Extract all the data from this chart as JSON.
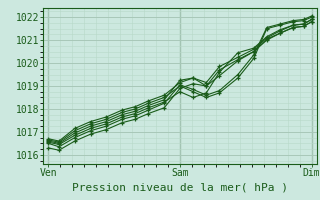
{
  "bg_color": "#cce8df",
  "plot_bg_color": "#cce8df",
  "grid_major_color": "#a8c8b8",
  "grid_minor_color": "#b8d8c8",
  "line_color": "#1a5c1a",
  "text_color": "#1a5c1a",
  "xlabel": "Pression niveau de la mer( hPa )",
  "xlabel_fontsize": 8,
  "ytick_values": [
    1016,
    1017,
    1018,
    1019,
    1020,
    1021,
    1022
  ],
  "xtick_labels": [
    "Ven",
    "Sam",
    "Dim"
  ],
  "xtick_positions": [
    0.0,
    0.5,
    1.0
  ],
  "ylim": [
    1015.6,
    1022.4
  ],
  "xlim": [
    -0.02,
    1.02
  ],
  "series": [
    {
      "x": [
        0.0,
        0.04,
        0.1,
        0.16,
        0.22,
        0.28,
        0.33,
        0.38,
        0.44,
        0.5,
        0.55,
        0.6,
        0.65,
        0.72,
        0.78,
        0.83,
        0.88,
        0.93,
        0.97,
        1.0
      ],
      "y": [
        1016.3,
        1016.2,
        1016.6,
        1016.9,
        1017.1,
        1017.4,
        1017.55,
        1017.8,
        1018.05,
        1018.9,
        1019.1,
        1019.0,
        1019.7,
        1020.15,
        1020.5,
        1021.05,
        1021.3,
        1021.55,
        1021.6,
        1021.8
      ]
    },
    {
      "x": [
        0.0,
        0.04,
        0.1,
        0.16,
        0.22,
        0.28,
        0.33,
        0.38,
        0.44,
        0.5,
        0.55,
        0.6,
        0.65,
        0.72,
        0.78,
        0.83,
        0.88,
        0.93,
        0.97,
        1.0
      ],
      "y": [
        1016.5,
        1016.35,
        1016.75,
        1017.05,
        1017.25,
        1017.55,
        1017.7,
        1017.95,
        1018.25,
        1019.05,
        1018.85,
        1018.6,
        1018.8,
        1019.5,
        1020.35,
        1021.55,
        1021.7,
        1021.85,
        1021.9,
        1022.05
      ]
    },
    {
      "x": [
        0.0,
        0.04,
        0.1,
        0.16,
        0.22,
        0.28,
        0.33,
        0.38,
        0.44,
        0.5,
        0.55,
        0.6,
        0.65,
        0.72,
        0.78,
        0.83,
        0.88,
        0.93,
        0.97,
        1.0
      ],
      "y": [
        1016.55,
        1016.45,
        1016.85,
        1017.15,
        1017.35,
        1017.65,
        1017.8,
        1018.05,
        1018.3,
        1018.75,
        1018.5,
        1018.7,
        1019.6,
        1020.45,
        1020.65,
        1021.15,
        1021.45,
        1021.65,
        1021.7,
        1021.9
      ]
    },
    {
      "x": [
        0.0,
        0.04,
        0.1,
        0.16,
        0.22,
        0.28,
        0.33,
        0.38,
        0.44,
        0.5,
        0.55,
        0.6,
        0.65,
        0.72,
        0.78,
        0.83,
        0.88,
        0.93,
        0.97,
        1.0
      ],
      "y": [
        1016.6,
        1016.5,
        1016.95,
        1017.25,
        1017.45,
        1017.75,
        1017.9,
        1018.15,
        1018.4,
        1019.25,
        1019.35,
        1019.15,
        1019.85,
        1020.25,
        1020.6,
        1021.1,
        1021.4,
        1021.65,
        1021.7,
        1021.9
      ]
    },
    {
      "x": [
        0.0,
        0.04,
        0.1,
        0.16,
        0.22,
        0.28,
        0.33,
        0.38,
        0.44,
        0.5,
        0.55,
        0.6,
        0.65,
        0.72,
        0.78,
        0.83,
        0.88,
        0.93,
        0.97,
        1.0
      ],
      "y": [
        1016.65,
        1016.55,
        1017.05,
        1017.35,
        1017.55,
        1017.85,
        1018.0,
        1018.25,
        1018.5,
        1019.0,
        1018.75,
        1018.5,
        1018.7,
        1019.35,
        1020.2,
        1021.5,
        1021.65,
        1021.8,
        1021.85,
        1022.0
      ]
    },
    {
      "x": [
        0.0,
        0.04,
        0.1,
        0.16,
        0.22,
        0.28,
        0.33,
        0.38,
        0.44,
        0.5,
        0.55,
        0.6,
        0.65,
        0.72,
        0.78,
        0.83,
        0.88,
        0.93,
        0.97,
        1.0
      ],
      "y": [
        1016.7,
        1016.6,
        1017.15,
        1017.45,
        1017.65,
        1017.95,
        1018.1,
        1018.35,
        1018.6,
        1019.15,
        1019.35,
        1019.0,
        1019.45,
        1020.1,
        1020.5,
        1021.0,
        1021.3,
        1021.55,
        1021.6,
        1021.8
      ]
    }
  ]
}
